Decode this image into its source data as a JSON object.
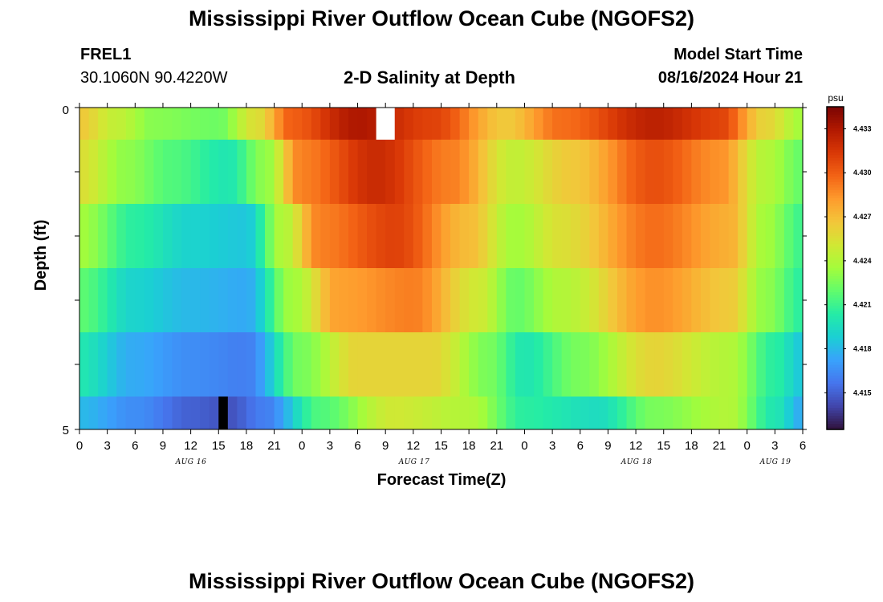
{
  "header": {
    "title": "Mississippi River Outflow Ocean Cube (NGOFS2)",
    "station_id": "FREL1",
    "station_coords": "30.1060N  90.4220W",
    "plot_subtitle": "2-D Salinity at Depth",
    "model_start_label": "Model Start Time",
    "model_start_value": "08/16/2024 Hour 21"
  },
  "footer": {
    "title": "Mississippi River Outflow Ocean Cube (NGOFS2)"
  },
  "chart_data": {
    "type": "heatmap",
    "title": "2-D Salinity at Depth",
    "xlabel": "Forecast Time(Z)",
    "ylabel": "Depth (ft)",
    "unit": "psu",
    "x_ticks": [
      "0",
      "3",
      "6",
      "9",
      "12",
      "15",
      "18",
      "21",
      "0",
      "3",
      "6",
      "9",
      "12",
      "15",
      "18",
      "21",
      "0",
      "3",
      "6",
      "9",
      "12",
      "15",
      "18",
      "21",
      "0",
      "3",
      "6"
    ],
    "day_labels": [
      "AUG 16",
      "AUG 17",
      "AUG 18",
      "AUG 19"
    ],
    "y_ticks": [
      "0",
      "5"
    ],
    "ylim": [
      0,
      5
    ],
    "colorbar": {
      "range": [
        4.4125,
        4.4345
      ],
      "ticks": [
        "4.433",
        "4.430",
        "4.427",
        "4.424",
        "4.421",
        "4.418",
        "4.415"
      ],
      "colors": [
        "#30123b",
        "#4145ab",
        "#4675ed",
        "#39a2fc",
        "#1bcfd4",
        "#24eca6",
        "#61fc6c",
        "#a4fc3b",
        "#d1e834",
        "#f3c63a",
        "#fe9b2d",
        "#f36315",
        "#d93806",
        "#b11901",
        "#7a0403"
      ]
    },
    "time_range_hours": [
      0,
      78
    ],
    "rows": [
      {
        "depth_band": "0.0-0.5 ft",
        "keyframes": [
          [
            0,
            4.4265
          ],
          [
            4,
            4.4245
          ],
          [
            8,
            4.4228
          ],
          [
            15,
            4.4222
          ],
          [
            19,
            4.4255
          ],
          [
            23,
            4.43
          ],
          [
            30,
            4.433
          ],
          [
            38,
            4.431
          ],
          [
            46,
            4.4265
          ],
          [
            52,
            4.4295
          ],
          [
            62,
            4.4325
          ],
          [
            69,
            4.431
          ],
          [
            74,
            4.426
          ],
          [
            78,
            4.4235
          ]
        ],
        "missing_hours": [
          [
            32,
            34
          ]
        ]
      },
      {
        "depth_band": "0.5-1.5 ft",
        "keyframes": [
          [
            0,
            4.4255
          ],
          [
            5,
            4.423
          ],
          [
            10,
            4.4215
          ],
          [
            16,
            4.42
          ],
          [
            20,
            4.423
          ],
          [
            24,
            4.429
          ],
          [
            32,
            4.432
          ],
          [
            40,
            4.429
          ],
          [
            47,
            4.4245
          ],
          [
            53,
            4.4265
          ],
          [
            62,
            4.4305
          ],
          [
            69,
            4.4285
          ],
          [
            74,
            4.424
          ],
          [
            78,
            4.422
          ]
        ],
        "missing_hours": []
      },
      {
        "depth_band": "1.5-2.5 ft",
        "keyframes": [
          [
            0,
            4.4235
          ],
          [
            6,
            4.4205
          ],
          [
            12,
            4.419
          ],
          [
            18,
            4.4185
          ],
          [
            22,
            4.424
          ],
          [
            26,
            4.429
          ],
          [
            34,
            4.431
          ],
          [
            42,
            4.427
          ],
          [
            47,
            4.4235
          ],
          [
            52,
            4.4255
          ],
          [
            62,
            4.4295
          ],
          [
            70,
            4.4275
          ],
          [
            74,
            4.4235
          ],
          [
            78,
            4.421
          ]
        ],
        "missing_hours": []
      },
      {
        "depth_band": "2.5-3.5 ft",
        "keyframes": [
          [
            0,
            4.4218
          ],
          [
            6,
            4.419
          ],
          [
            12,
            4.418
          ],
          [
            18,
            4.4175
          ],
          [
            23,
            4.4235
          ],
          [
            28,
            4.428
          ],
          [
            36,
            4.429
          ],
          [
            43,
            4.425
          ],
          [
            47,
            4.422
          ],
          [
            52,
            4.424
          ],
          [
            62,
            4.4285
          ],
          [
            70,
            4.4265
          ],
          [
            74,
            4.423
          ],
          [
            78,
            4.4205
          ]
        ],
        "missing_hours": []
      },
      {
        "depth_band": "3.5-4.5 ft",
        "keyframes": [
          [
            0,
            4.42
          ],
          [
            6,
            4.4175
          ],
          [
            12,
            4.4165
          ],
          [
            18,
            4.416
          ],
          [
            24,
            4.4225
          ],
          [
            30,
            4.426
          ],
          [
            38,
            4.426
          ],
          [
            44,
            4.4225
          ],
          [
            48,
            4.42
          ],
          [
            54,
            4.4225
          ],
          [
            62,
            4.426
          ],
          [
            70,
            4.424
          ],
          [
            75,
            4.4205
          ],
          [
            78,
            4.4185
          ]
        ],
        "missing_hours": []
      },
      {
        "depth_band": "4.5-5.0 ft",
        "keyframes": [
          [
            0,
            4.418
          ],
          [
            6,
            4.4165
          ],
          [
            12,
            4.415
          ],
          [
            16,
            4.4145
          ],
          [
            20,
            4.416
          ],
          [
            26,
            4.4215
          ],
          [
            34,
            4.425
          ],
          [
            42,
            4.424
          ],
          [
            48,
            4.4205
          ],
          [
            56,
            4.4195
          ],
          [
            62,
            4.4225
          ],
          [
            70,
            4.424
          ],
          [
            75,
            4.42
          ],
          [
            78,
            4.4175
          ]
        ],
        "missing_hours": [
          [
            15,
            16
          ]
        ]
      }
    ]
  }
}
